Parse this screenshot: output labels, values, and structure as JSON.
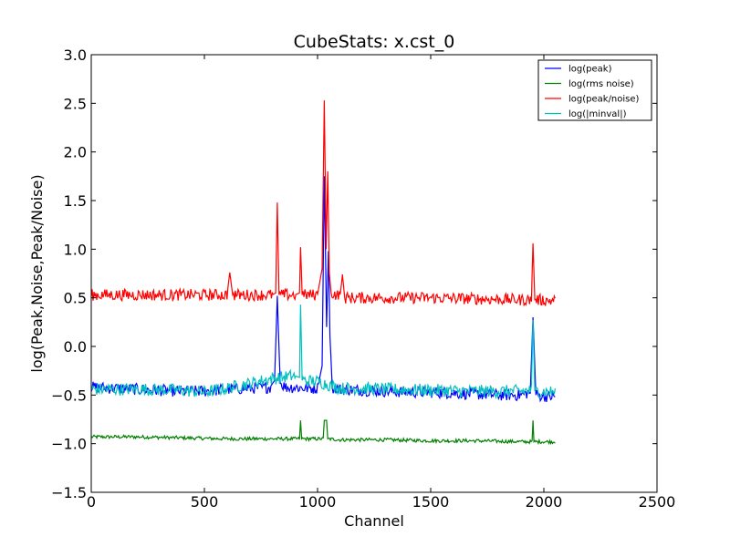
{
  "chart_data": {
    "type": "line",
    "title": "CubeStats: x.cst_0",
    "xlabel": "Channel",
    "ylabel": "log(Peak,Noise,Peak/Noise)",
    "xlim": [
      0,
      2500
    ],
    "ylim": [
      -1.5,
      3.0
    ],
    "xticks": [
      "0",
      "500",
      "1000",
      "1500",
      "2000",
      "2500"
    ],
    "yticks": [
      "−1.5",
      "−1.0",
      "−0.5",
      "0.0",
      "0.5",
      "1.0",
      "1.5",
      "2.0",
      "2.5",
      "3.0"
    ],
    "grid": false,
    "legend_position": "top-right",
    "series": [
      {
        "name": "log(peak)",
        "color": "#0000ff",
        "x": [
          0,
          100,
          200,
          300,
          400,
          500,
          600,
          700,
          790,
          810,
          822,
          835,
          860,
          900,
          950,
          1000,
          1020,
          1030,
          1040,
          1048,
          1055,
          1065,
          1100,
          1200,
          1300,
          1400,
          1500,
          1600,
          1700,
          1800,
          1900,
          1940,
          1952,
          1965,
          2000,
          2050
        ],
        "y": [
          -0.42,
          -0.43,
          -0.44,
          -0.45,
          -0.46,
          -0.46,
          -0.44,
          -0.43,
          -0.42,
          -0.35,
          0.52,
          -0.38,
          -0.42,
          -0.42,
          -0.43,
          -0.43,
          -0.2,
          1.75,
          0.2,
          0.98,
          0.1,
          -0.42,
          -0.44,
          -0.45,
          -0.46,
          -0.47,
          -0.47,
          -0.48,
          -0.49,
          -0.5,
          -0.5,
          -0.47,
          0.3,
          -0.5,
          -0.51,
          -0.52
        ]
      },
      {
        "name": "log(rms noise)",
        "color": "#008000",
        "x": [
          0,
          200,
          400,
          600,
          800,
          920,
          925,
          930,
          1000,
          1025,
          1030,
          1040,
          1045,
          1100,
          1300,
          1500,
          1700,
          1900,
          1948,
          1952,
          1956,
          2050
        ],
        "y": [
          -0.93,
          -0.93,
          -0.94,
          -0.95,
          -0.95,
          -0.95,
          -0.76,
          -0.95,
          -0.95,
          -0.95,
          -0.76,
          -0.76,
          -0.95,
          -0.96,
          -0.96,
          -0.97,
          -0.97,
          -0.98,
          -0.98,
          -0.76,
          -0.98,
          -0.98
        ]
      },
      {
        "name": "log(peak/noise)",
        "color": "#ff0000",
        "x": [
          0,
          200,
          400,
          600,
          612,
          625,
          800,
          815,
          822,
          830,
          900,
          920,
          925,
          932,
          1000,
          1020,
          1030,
          1038,
          1045,
          1052,
          1060,
          1100,
          1110,
          1120,
          1300,
          1500,
          1700,
          1900,
          1945,
          1952,
          1960,
          2050
        ],
        "y": [
          0.53,
          0.53,
          0.53,
          0.53,
          0.76,
          0.53,
          0.53,
          0.55,
          1.48,
          0.53,
          0.53,
          0.55,
          1.02,
          0.53,
          0.53,
          0.8,
          2.53,
          1.0,
          1.8,
          0.75,
          0.55,
          0.52,
          0.74,
          0.5,
          0.5,
          0.5,
          0.49,
          0.48,
          0.48,
          1.06,
          0.48,
          0.47
        ]
      },
      {
        "name": "log(|minval|)",
        "color": "#00bfbf",
        "x": [
          0,
          200,
          400,
          500,
          600,
          700,
          800,
          900,
          920,
          925,
          932,
          1000,
          1100,
          1300,
          1500,
          1700,
          1900,
          1945,
          1952,
          1960,
          2050
        ],
        "y": [
          -0.44,
          -0.44,
          -0.45,
          -0.47,
          -0.43,
          -0.38,
          -0.33,
          -0.3,
          -0.32,
          0.43,
          -0.35,
          -0.36,
          -0.43,
          -0.44,
          -0.45,
          -0.46,
          -0.46,
          -0.45,
          0.27,
          -0.46,
          -0.47
        ]
      }
    ]
  }
}
